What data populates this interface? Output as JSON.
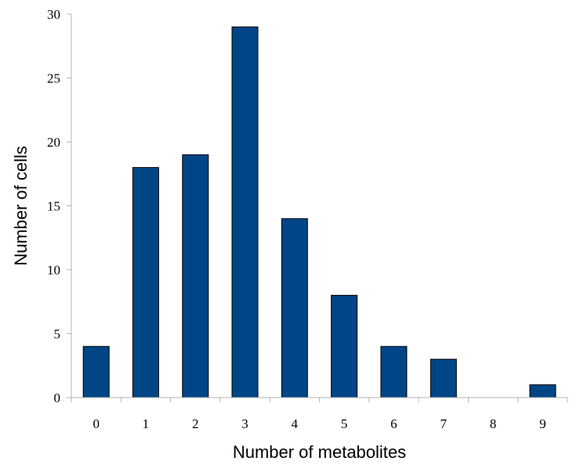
{
  "chart_data": {
    "type": "bar",
    "categories": [
      "0",
      "1",
      "2",
      "3",
      "4",
      "5",
      "6",
      "7",
      "8",
      "9"
    ],
    "values": [
      4,
      18,
      19,
      29,
      14,
      8,
      4,
      3,
      0,
      1
    ],
    "xlabel": "Number of metabolites",
    "ylabel": "Number of cells",
    "ylim": [
      0,
      30
    ],
    "yticks": [
      0,
      5,
      10,
      15,
      20,
      25,
      30
    ],
    "bar_color": "#004586",
    "grid": false,
    "legend": "none"
  }
}
